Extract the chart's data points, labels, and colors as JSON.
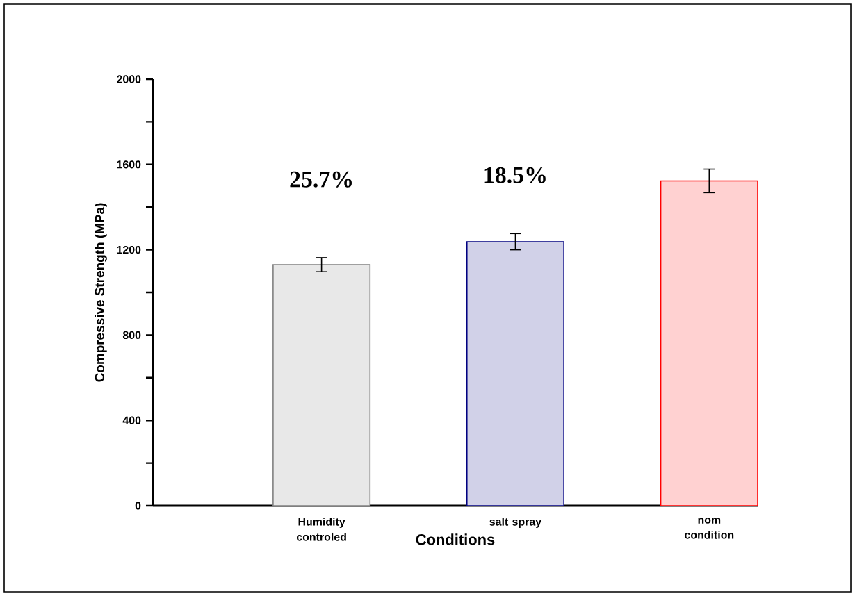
{
  "chart_data": {
    "type": "bar",
    "xlabel": "Conditions",
    "ylabel": "Compressive Strength (MPa)",
    "categories": [
      "Humidity controled",
      "salt spray",
      "nom condition"
    ],
    "values": [
      1130,
      1238,
      1523
    ],
    "errors": [
      33,
      38,
      55
    ],
    "colors": [
      "#808080",
      "#000080",
      "#ff0000"
    ],
    "ylim": [
      0,
      2000
    ],
    "yticks": [
      0,
      {
        "value": 200,
        "label": null
      },
      400,
      {
        "value": 600,
        "label": null
      },
      800,
      {
        "value": 1000,
        "label": null
      },
      1200,
      {
        "value": 1400,
        "label": null
      },
      1600,
      {
        "value": 1800,
        "label": null
      },
      2000
    ],
    "annotations": [
      "25.7%",
      "18.5%"
    ]
  }
}
